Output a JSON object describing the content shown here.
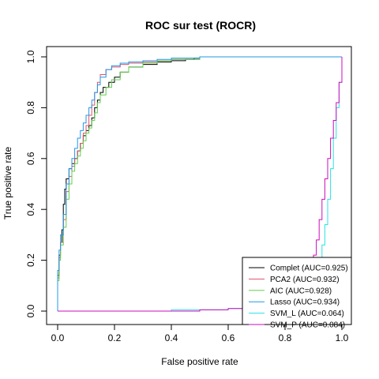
{
  "chart_data": {
    "type": "line",
    "title": "ROC sur test (ROCR)",
    "xlabel": "False positive rate",
    "ylabel": "True positive rate",
    "xlim": [
      0,
      1
    ],
    "ylim": [
      0,
      1
    ],
    "xticks": [
      0.0,
      0.2,
      0.4,
      0.6,
      0.8,
      1.0
    ],
    "yticks": [
      0.0,
      0.2,
      0.4,
      0.6,
      0.8,
      1.0
    ],
    "tick_labels": [
      "0.0",
      "0.2",
      "0.4",
      "0.6",
      "0.8",
      "1.0"
    ],
    "grid": false,
    "legend_position": "bottom-right",
    "series": [
      {
        "name": "Complet (AUC=0.925)",
        "color": "#000000",
        "x": [
          0,
          0,
          0.005,
          0.01,
          0.015,
          0.02,
          0.025,
          0.03,
          0.04,
          0.05,
          0.06,
          0.07,
          0.08,
          0.09,
          0.1,
          0.11,
          0.12,
          0.13,
          0.14,
          0.15,
          0.16,
          0.18,
          0.2,
          0.22,
          0.25,
          0.3,
          0.35,
          0.4,
          0.45,
          0.48,
          0.5,
          0.55,
          0.6,
          0.8,
          1.0
        ],
        "y": [
          0,
          0.14,
          0.22,
          0.27,
          0.32,
          0.42,
          0.48,
          0.52,
          0.56,
          0.58,
          0.6,
          0.63,
          0.66,
          0.69,
          0.71,
          0.73,
          0.76,
          0.8,
          0.83,
          0.86,
          0.88,
          0.9,
          0.92,
          0.94,
          0.96,
          0.97,
          0.98,
          0.985,
          0.99,
          0.995,
          1.0,
          1.0,
          1.0,
          1.0,
          1.0
        ]
      },
      {
        "name": "PCA2 (AUC=0.932)",
        "color": "#df536b",
        "x": [
          0,
          0,
          0.005,
          0.01,
          0.02,
          0.03,
          0.04,
          0.05,
          0.06,
          0.07,
          0.08,
          0.09,
          0.1,
          0.11,
          0.12,
          0.13,
          0.14,
          0.15,
          0.17,
          0.19,
          0.22,
          0.25,
          0.3,
          0.35,
          0.4,
          0.5,
          0.6,
          0.8,
          1.0
        ],
        "y": [
          0,
          0.13,
          0.21,
          0.27,
          0.36,
          0.47,
          0.53,
          0.57,
          0.6,
          0.63,
          0.66,
          0.7,
          0.73,
          0.77,
          0.81,
          0.86,
          0.9,
          0.93,
          0.95,
          0.96,
          0.97,
          0.975,
          0.98,
          0.985,
          0.99,
          1.0,
          1.0,
          1.0,
          1.0
        ]
      },
      {
        "name": "AIC (AUC=0.928)",
        "color": "#61d04f",
        "x": [
          0,
          0,
          0.005,
          0.01,
          0.02,
          0.03,
          0.04,
          0.05,
          0.06,
          0.07,
          0.08,
          0.09,
          0.1,
          0.11,
          0.12,
          0.13,
          0.14,
          0.15,
          0.17,
          0.19,
          0.22,
          0.25,
          0.3,
          0.35,
          0.4,
          0.5,
          0.6,
          0.8,
          1.0
        ],
        "y": [
          0,
          0.12,
          0.2,
          0.26,
          0.33,
          0.44,
          0.5,
          0.55,
          0.58,
          0.61,
          0.64,
          0.67,
          0.7,
          0.72,
          0.75,
          0.78,
          0.82,
          0.85,
          0.88,
          0.91,
          0.94,
          0.96,
          0.975,
          0.985,
          0.99,
          1.0,
          1.0,
          1.0,
          1.0
        ]
      },
      {
        "name": "Lasso (AUC=0.934)",
        "color": "#2297e6",
        "x": [
          0,
          0,
          0.005,
          0.01,
          0.02,
          0.03,
          0.04,
          0.05,
          0.06,
          0.07,
          0.08,
          0.09,
          0.1,
          0.11,
          0.12,
          0.13,
          0.14,
          0.15,
          0.17,
          0.19,
          0.22,
          0.25,
          0.3,
          0.35,
          0.4,
          0.5,
          0.6,
          0.8,
          1.0
        ],
        "y": [
          0,
          0.16,
          0.24,
          0.3,
          0.38,
          0.5,
          0.56,
          0.6,
          0.64,
          0.68,
          0.71,
          0.74,
          0.77,
          0.8,
          0.83,
          0.86,
          0.89,
          0.92,
          0.95,
          0.965,
          0.975,
          0.98,
          0.985,
          0.99,
          0.995,
          1.0,
          1.0,
          1.0,
          1.0
        ]
      },
      {
        "name": "SVM_L (AUC=0.064)",
        "color": "#28e2e5",
        "x": [
          0,
          0.2,
          0.4,
          0.6,
          0.7,
          0.8,
          0.85,
          0.88,
          0.9,
          0.91,
          0.92,
          0.93,
          0.94,
          0.95,
          0.96,
          0.97,
          0.98,
          0.99,
          1.0,
          1.0
        ],
        "y": [
          0,
          0,
          0.005,
          0.01,
          0.02,
          0.03,
          0.05,
          0.08,
          0.12,
          0.16,
          0.2,
          0.26,
          0.34,
          0.44,
          0.56,
          0.68,
          0.8,
          0.9,
          0.98,
          1.0
        ]
      },
      {
        "name": "SVM_P (AUC=0.084)",
        "color": "#cd0bbc",
        "x": [
          0,
          0.3,
          0.5,
          0.6,
          0.7,
          0.8,
          0.85,
          0.87,
          0.88,
          0.89,
          0.9,
          0.91,
          0.92,
          0.93,
          0.94,
          0.95,
          0.96,
          0.97,
          0.98,
          0.99,
          1.0,
          1.0
        ],
        "y": [
          0,
          0,
          0.005,
          0.01,
          0.02,
          0.04,
          0.07,
          0.1,
          0.13,
          0.17,
          0.22,
          0.28,
          0.36,
          0.44,
          0.52,
          0.6,
          0.68,
          0.75,
          0.82,
          0.9,
          0.95,
          1.0
        ]
      }
    ]
  }
}
